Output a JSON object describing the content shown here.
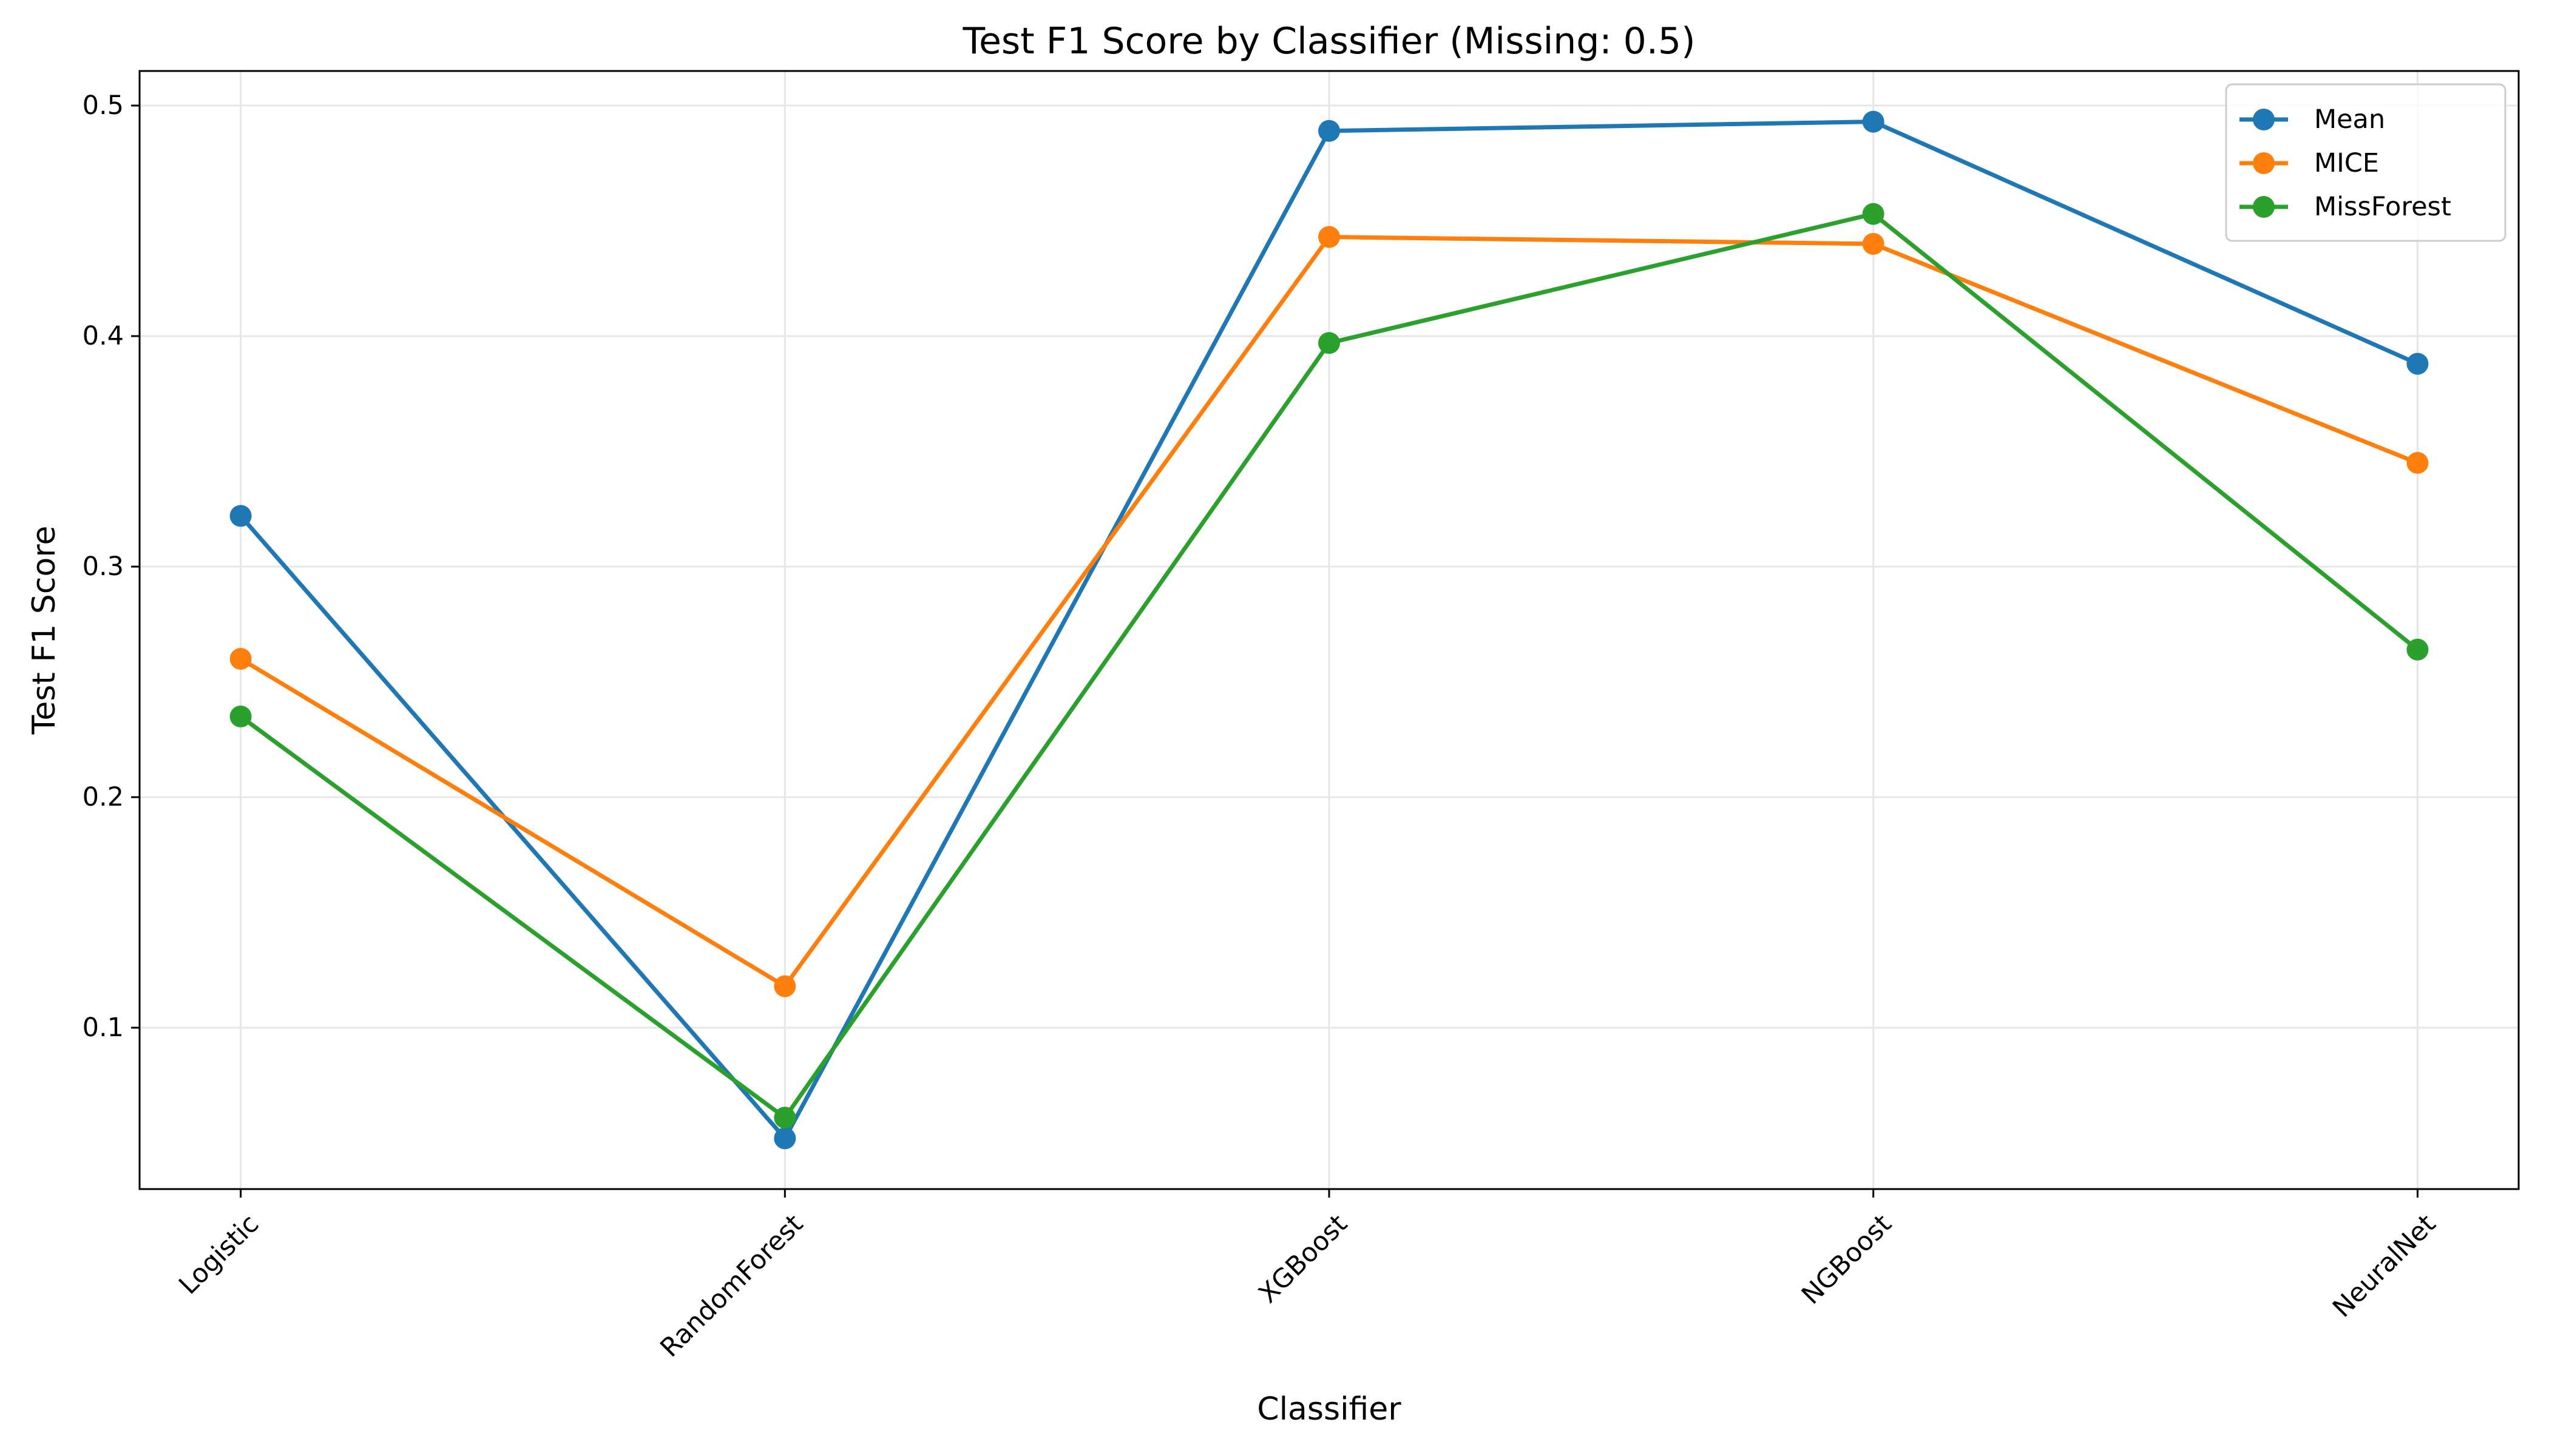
{
  "chart_data": {
    "type": "line",
    "title": "Test F1 Score by Classifier (Missing: 0.5)",
    "xlabel": "Classifier",
    "ylabel": "Test F1 Score",
    "categories": [
      "Logistic",
      "RandomForest",
      "XGBoost",
      "NGBoost",
      "NeuralNet"
    ],
    "ylim": [
      0.03,
      0.515
    ],
    "yticks": [
      0.1,
      0.2,
      0.3,
      0.4,
      0.5
    ],
    "ytick_labels": [
      "0.1",
      "0.2",
      "0.3",
      "0.4",
      "0.5"
    ],
    "grid": true,
    "legend_position": "top-right",
    "series": [
      {
        "name": "Mean",
        "color": "#1f77b4",
        "values": [
          0.322,
          0.052,
          0.489,
          0.493,
          0.388
        ]
      },
      {
        "name": "MICE",
        "color": "#ff7f0e",
        "values": [
          0.26,
          0.118,
          0.443,
          0.44,
          0.345
        ]
      },
      {
        "name": "MissForest",
        "color": "#2ca02c",
        "values": [
          0.235,
          0.061,
          0.397,
          0.453,
          0.264
        ]
      }
    ]
  }
}
